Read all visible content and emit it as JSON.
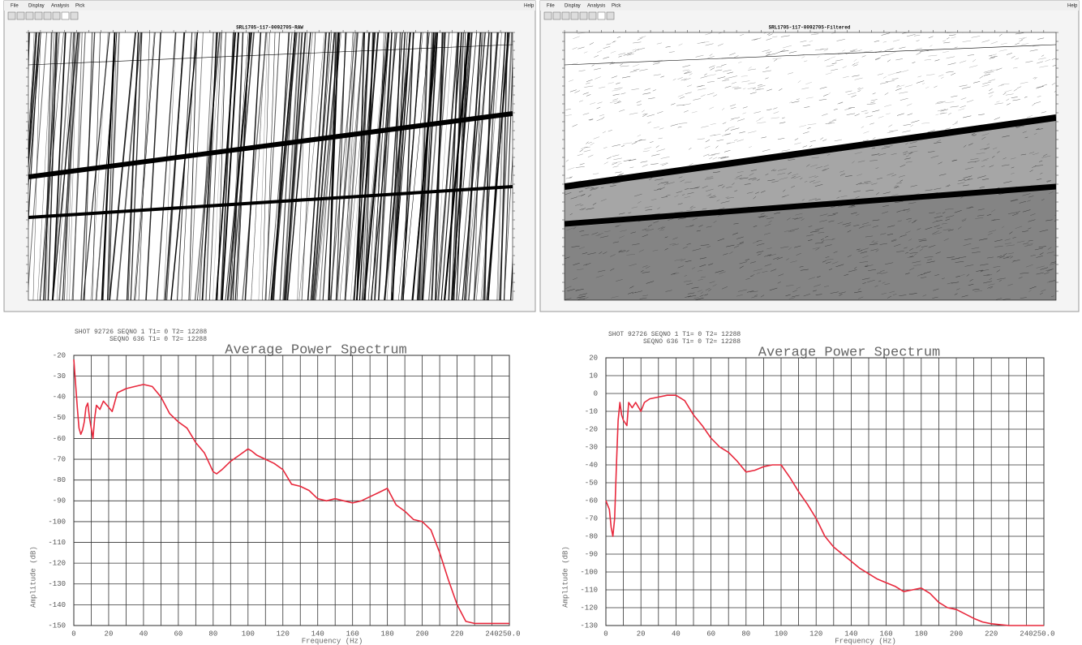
{
  "windows": [
    {
      "menu": [
        "File",
        "Display",
        "Analysis",
        "Pick",
        "Help"
      ],
      "title": "SRL1705-117-0092705-RAW"
    },
    {
      "menu": [
        "File",
        "Display",
        "Analysis",
        "Pick",
        "Help"
      ],
      "title": "SRL1705-117-0092705-Filtered"
    }
  ],
  "chart_data": [
    {
      "type": "line",
      "header": [
        "SHOT 92726 SEQNO 1 T1= 0 T2= 12288",
        "SEQNO 636 T1= 0 T2= 12288"
      ],
      "title": "Average Power Spectrum",
      "x_label": "Frequency (Hz)",
      "y_label": "Amplitude (dB)",
      "color": "#e8283c",
      "grid": true,
      "xlim": [
        0,
        250
      ],
      "xticks": [
        0,
        20,
        40,
        60,
        80,
        100,
        120,
        140,
        160,
        180,
        200,
        220,
        240,
        {
          "value": 250,
          "label": "250.0"
        }
      ],
      "x_minor_ticks": [
        10,
        30,
        50,
        70,
        90,
        110,
        130,
        150,
        170,
        190,
        210,
        230
      ],
      "ylim": [
        -150,
        -20
      ],
      "yticks": [
        -20,
        -30,
        -40,
        -50,
        -60,
        -70,
        -80,
        -90,
        -100,
        -110,
        -120,
        -130,
        -140,
        -150
      ],
      "x": [
        0,
        2,
        3,
        4,
        5,
        6,
        7,
        8,
        9,
        10,
        11,
        12,
        13,
        15,
        17,
        20,
        22,
        25,
        30,
        35,
        40,
        45,
        50,
        55,
        60,
        65,
        70,
        75,
        80,
        82,
        85,
        90,
        95,
        100,
        102,
        105,
        110,
        115,
        120,
        125,
        130,
        135,
        140,
        145,
        150,
        155,
        160,
        165,
        170,
        175,
        180,
        185,
        190,
        195,
        200,
        205,
        210,
        215,
        220,
        225,
        230,
        240,
        250
      ],
      "values": [
        -22,
        -45,
        -55,
        -58,
        -56,
        -52,
        -45,
        -43,
        -50,
        -55,
        -60,
        -50,
        -44,
        -46,
        -42,
        -45,
        -47,
        -38,
        -36,
        -35,
        -34,
        -35,
        -40,
        -48,
        -52,
        -55,
        -62,
        -67,
        -76,
        -77,
        -75,
        -71,
        -68,
        -65,
        -66,
        -68,
        -70,
        -72,
        -75,
        -82,
        -83,
        -85,
        -89,
        -90,
        -89,
        -90,
        -91,
        -90,
        -88,
        -86,
        -84,
        -92,
        -95,
        -99,
        -100,
        -104,
        -115,
        -128,
        -140,
        -148,
        -149,
        -149,
        -149
      ]
    },
    {
      "type": "line",
      "header": [
        "SHOT 92726 SEQNO 1 T1= 0 T2= 12288",
        "SEQNO 636 T1= 0 T2= 12288"
      ],
      "title": "Average Power Spectrum",
      "x_label": "Frequency (Hz)",
      "y_label": "Amplitude (dB)",
      "color": "#e8283c",
      "grid": true,
      "xlim": [
        0,
        250
      ],
      "xticks": [
        0,
        20,
        40,
        60,
        80,
        100,
        120,
        140,
        160,
        180,
        200,
        220,
        240,
        {
          "value": 250,
          "label": "250.0"
        }
      ],
      "x_minor_ticks": [
        10,
        30,
        50,
        70,
        90,
        110,
        130,
        150,
        170,
        190,
        210,
        230
      ],
      "ylim": [
        -130,
        20
      ],
      "yticks": [
        20,
        10,
        0,
        -10,
        -20,
        -30,
        -40,
        -50,
        -60,
        -70,
        -80,
        -90,
        -100,
        -110,
        -120,
        -130
      ],
      "x": [
        0,
        2,
        3,
        4,
        5,
        6,
        7,
        8,
        9,
        10,
        12,
        13,
        15,
        17,
        20,
        22,
        25,
        30,
        35,
        40,
        45,
        50,
        55,
        60,
        65,
        70,
        75,
        80,
        85,
        90,
        95,
        100,
        105,
        110,
        115,
        120,
        125,
        130,
        140,
        145,
        150,
        155,
        160,
        165,
        170,
        175,
        180,
        185,
        190,
        195,
        200,
        210,
        215,
        220,
        230,
        240,
        250
      ],
      "values": [
        -60,
        -65,
        -75,
        -80,
        -70,
        -40,
        -15,
        -5,
        -12,
        -15,
        -18,
        -5,
        -8,
        -5,
        -10,
        -5,
        -3,
        -2,
        -1,
        -1,
        -4,
        -12,
        -18,
        -25,
        -30,
        -33,
        -38,
        -44,
        -43,
        -41,
        -40,
        -40,
        -47,
        -55,
        -62,
        -70,
        -80,
        -86,
        -94,
        -98,
        -101,
        -104,
        -106,
        -108,
        -111,
        -110,
        -109,
        -112,
        -117,
        -120,
        -121,
        -126,
        -128,
        -129,
        -130,
        -130,
        -130
      ]
    }
  ]
}
